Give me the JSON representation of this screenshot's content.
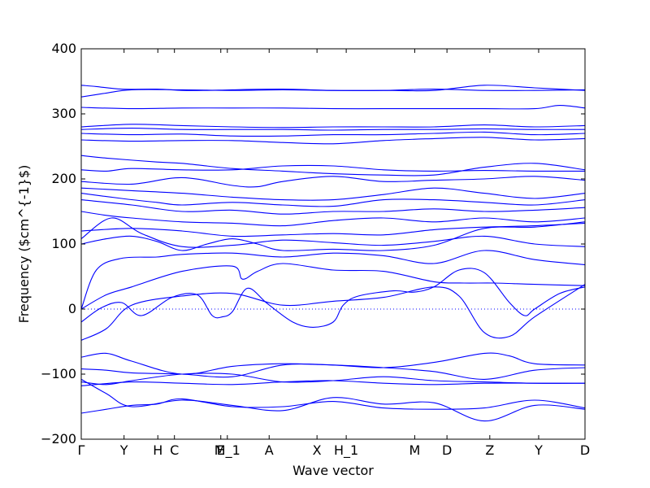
{
  "chart_data": {
    "type": "line",
    "title": "",
    "xlabel": "Wave vector",
    "ylabel": "Frequency ($cm^{-1}$)",
    "ylim": [
      -200,
      400
    ],
    "yticks": [
      -200,
      -100,
      0,
      100,
      200,
      300,
      400
    ],
    "grid": false,
    "legend": "none",
    "line_color": "#0000ff",
    "zero_line": {
      "y": 0,
      "style": "dotted",
      "color": "#0000ff"
    },
    "x_range": [
      0,
      1
    ],
    "special_points": [
      {
        "label": "Γ",
        "x": 0.0
      },
      {
        "label": "Y",
        "x": 0.085
      },
      {
        "label": "H",
        "x": 0.152
      },
      {
        "label": "C",
        "x": 0.185
      },
      {
        "label": "E",
        "x": 0.277
      },
      {
        "label": "M_1",
        "x": 0.29
      },
      {
        "label": "A",
        "x": 0.373
      },
      {
        "label": "X",
        "x": 0.468
      },
      {
        "label": "H_1",
        "x": 0.526
      },
      {
        "label": "M",
        "x": 0.662
      },
      {
        "label": "D",
        "x": 0.726
      },
      {
        "label": "Z",
        "x": 0.811
      },
      {
        "label": "Y",
        "x": 0.908
      },
      {
        "label": "D",
        "x": 1.0
      }
    ],
    "series": [
      {
        "x": [
          0,
          0.03,
          0.08,
          0.15,
          0.2,
          0.25,
          0.3,
          0.4,
          0.5,
          0.6,
          0.7,
          0.8,
          0.9,
          1
        ],
        "values": [
          344,
          342,
          338,
          338,
          336,
          336,
          337,
          338,
          336,
          336,
          336,
          344,
          340,
          336
        ]
      },
      {
        "x": [
          0,
          0.05,
          0.1,
          0.2,
          0.3,
          0.4,
          0.5,
          0.6,
          0.7,
          0.8,
          0.9,
          1
        ],
        "values": [
          326,
          332,
          337,
          337,
          336,
          337,
          336,
          336,
          338,
          336,
          336,
          337
        ]
      },
      {
        "x": [
          0,
          0.1,
          0.2,
          0.3,
          0.4,
          0.5,
          0.6,
          0.7,
          0.8,
          0.9,
          0.95,
          1
        ],
        "values": [
          310,
          308,
          309,
          309,
          309,
          308,
          308,
          308,
          308,
          308,
          313,
          309
        ]
      },
      {
        "x": [
          0,
          0.1,
          0.2,
          0.3,
          0.4,
          0.5,
          0.6,
          0.7,
          0.8,
          0.9,
          1
        ],
        "values": [
          280,
          284,
          282,
          280,
          279,
          280,
          280,
          280,
          283,
          280,
          282
        ]
      },
      {
        "x": [
          0,
          0.1,
          0.2,
          0.3,
          0.4,
          0.5,
          0.6,
          0.7,
          0.8,
          0.9,
          1
        ],
        "values": [
          276,
          278,
          276,
          276,
          276,
          275,
          276,
          276,
          277,
          276,
          276
        ]
      },
      {
        "x": [
          0,
          0.1,
          0.2,
          0.3,
          0.4,
          0.5,
          0.6,
          0.7,
          0.8,
          0.9,
          1
        ],
        "values": [
          270,
          268,
          269,
          266,
          266,
          268,
          268,
          270,
          272,
          268,
          270
        ]
      },
      {
        "x": [
          0,
          0.1,
          0.2,
          0.3,
          0.4,
          0.5,
          0.6,
          0.7,
          0.8,
          0.9,
          1
        ],
        "values": [
          260,
          258,
          259,
          259,
          256,
          254,
          259,
          262,
          264,
          260,
          262
        ]
      },
      {
        "x": [
          0,
          0.05,
          0.15,
          0.2,
          0.3,
          0.4,
          0.5,
          0.6,
          0.7,
          0.8,
          0.9,
          1
        ],
        "values": [
          236,
          232,
          226,
          224,
          216,
          212,
          208,
          206,
          206,
          218,
          224,
          214
        ]
      },
      {
        "x": [
          0,
          0.05,
          0.1,
          0.2,
          0.3,
          0.4,
          0.5,
          0.6,
          0.7,
          0.8,
          0.9,
          1
        ],
        "values": [
          214,
          212,
          216,
          214,
          214,
          220,
          220,
          214,
          212,
          213,
          212,
          212
        ]
      },
      {
        "x": [
          0,
          0.1,
          0.2,
          0.3,
          0.35,
          0.4,
          0.5,
          0.6,
          0.7,
          0.8,
          0.9,
          1
        ],
        "values": [
          196,
          192,
          202,
          190,
          188,
          196,
          204,
          196,
          198,
          200,
          204,
          198
        ]
      },
      {
        "x": [
          0,
          0.1,
          0.2,
          0.3,
          0.4,
          0.5,
          0.6,
          0.7,
          0.8,
          0.9,
          1
        ],
        "values": [
          186,
          182,
          178,
          172,
          168,
          168,
          176,
          186,
          178,
          170,
          178
        ]
      },
      {
        "x": [
          0,
          0.08,
          0.15,
          0.2,
          0.3,
          0.4,
          0.5,
          0.6,
          0.7,
          0.8,
          0.9,
          1
        ],
        "values": [
          178,
          170,
          164,
          160,
          164,
          160,
          158,
          168,
          168,
          164,
          160,
          168
        ]
      },
      {
        "x": [
          0,
          0.1,
          0.2,
          0.3,
          0.4,
          0.5,
          0.6,
          0.7,
          0.8,
          0.9,
          1
        ],
        "values": [
          168,
          160,
          150,
          152,
          146,
          150,
          150,
          154,
          150,
          152,
          156
        ]
      },
      {
        "x": [
          0,
          0.05,
          0.1,
          0.2,
          0.3,
          0.4,
          0.5,
          0.6,
          0.7,
          0.8,
          0.9,
          1
        ],
        "values": [
          150,
          144,
          140,
          134,
          132,
          128,
          136,
          140,
          134,
          140,
          134,
          140
        ]
      },
      {
        "x": [
          0,
          0.1,
          0.2,
          0.3,
          0.4,
          0.5,
          0.6,
          0.7,
          0.8,
          0.9,
          1
        ],
        "values": [
          120,
          124,
          120,
          112,
          114,
          116,
          114,
          122,
          126,
          128,
          132
        ]
      },
      {
        "x": [
          0,
          0.06,
          0.12,
          0.2,
          0.3,
          0.4,
          0.5,
          0.6,
          0.7,
          0.8,
          0.9,
          1
        ],
        "values": [
          108,
          140,
          116,
          96,
          98,
          106,
          102,
          98,
          104,
          112,
          100,
          96
        ]
      },
      {
        "x": [
          0,
          0.05,
          0.1,
          0.15,
          0.2,
          0.25,
          0.3,
          0.35,
          0.4,
          0.5,
          0.6,
          0.7,
          0.8,
          0.9,
          1
        ],
        "values": [
          100,
          108,
          112,
          104,
          90,
          100,
          108,
          100,
          90,
          92,
          90,
          98,
          124,
          126,
          134
        ]
      },
      {
        "x": [
          0,
          0.03,
          0.08,
          0.15,
          0.2,
          0.3,
          0.4,
          0.5,
          0.6,
          0.7,
          0.8,
          0.9,
          1
        ],
        "values": [
          0,
          60,
          78,
          80,
          84,
          86,
          80,
          86,
          82,
          70,
          90,
          76,
          68
        ]
      },
      {
        "x": [
          0,
          0.05,
          0.1,
          0.2,
          0.3,
          0.32,
          0.35,
          0.4,
          0.5,
          0.6,
          0.7,
          0.76,
          0.82,
          0.9,
          1
        ],
        "values": [
          0,
          22,
          34,
          58,
          66,
          46,
          58,
          70,
          60,
          58,
          42,
          40,
          40,
          38,
          36
        ]
      },
      {
        "x": [
          0,
          0.04,
          0.08,
          0.12,
          0.18,
          0.23,
          0.26,
          0.28,
          0.3,
          0.33,
          0.37,
          0.42,
          0.46,
          0.5,
          0.52,
          0.55,
          0.62,
          0.66,
          0.7,
          0.75,
          0.8,
          0.85,
          0.88,
          0.9,
          0.95,
          1
        ],
        "values": [
          -20,
          2,
          10,
          -10,
          18,
          22,
          -10,
          -12,
          -4,
          32,
          8,
          -20,
          -28,
          -20,
          6,
          20,
          28,
          26,
          34,
          60,
          56,
          10,
          -10,
          0,
          24,
          34
        ]
      },
      {
        "x": [
          0,
          0.05,
          0.1,
          0.2,
          0.3,
          0.4,
          0.5,
          0.6,
          0.7,
          0.75,
          0.8,
          0.85,
          0.9,
          1
        ],
        "values": [
          -48,
          -30,
          6,
          20,
          24,
          6,
          12,
          18,
          34,
          20,
          -36,
          -42,
          -12,
          38
        ]
      },
      {
        "x": [
          0,
          0.05,
          0.1,
          0.2,
          0.3,
          0.4,
          0.5,
          0.6,
          0.7,
          0.8,
          0.85,
          0.9,
          1
        ],
        "values": [
          -74,
          -68,
          -80,
          -100,
          -88,
          -84,
          -86,
          -90,
          -82,
          -68,
          -72,
          -84,
          -86
        ]
      },
      {
        "x": [
          0,
          0.05,
          0.1,
          0.2,
          0.3,
          0.4,
          0.5,
          0.6,
          0.7,
          0.8,
          0.9,
          1
        ],
        "values": [
          -92,
          -94,
          -98,
          -100,
          -104,
          -86,
          -86,
          -90,
          -96,
          -108,
          -94,
          -90
        ]
      },
      {
        "x": [
          0,
          0.05,
          0.1,
          0.2,
          0.3,
          0.4,
          0.5,
          0.6,
          0.7,
          0.8,
          0.9,
          1
        ],
        "values": [
          -112,
          -116,
          -110,
          -100,
          -100,
          -112,
          -110,
          -104,
          -110,
          -112,
          -114,
          -114
        ]
      },
      {
        "x": [
          0,
          0.1,
          0.2,
          0.3,
          0.4,
          0.5,
          0.6,
          0.7,
          0.8,
          0.9,
          1
        ],
        "values": [
          -118,
          -112,
          -114,
          -116,
          -112,
          -110,
          -114,
          -116,
          -114,
          -114,
          -114
        ]
      },
      {
        "x": [
          0,
          0.05,
          0.1,
          0.15,
          0.2,
          0.3,
          0.4,
          0.5,
          0.6,
          0.7,
          0.8,
          0.9,
          1
        ],
        "values": [
          -160,
          -154,
          -148,
          -146,
          -138,
          -150,
          -150,
          -142,
          -152,
          -154,
          -152,
          -140,
          -152
        ]
      },
      {
        "x": [
          0,
          0.05,
          0.1,
          0.2,
          0.3,
          0.4,
          0.5,
          0.6,
          0.7,
          0.8,
          0.9,
          1
        ],
        "values": [
          -108,
          -130,
          -150,
          -140,
          -148,
          -156,
          -136,
          -146,
          -144,
          -172,
          -148,
          -154
        ]
      }
    ]
  }
}
